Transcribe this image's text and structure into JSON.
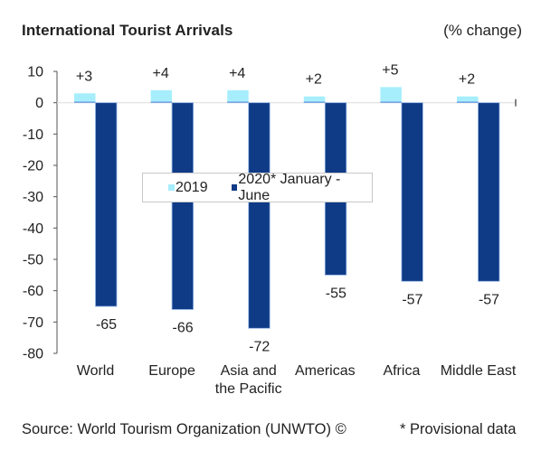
{
  "header": {
    "title": "International Tourist Arrivals",
    "unit": "(% change)"
  },
  "footer": {
    "source": "Source: World Tourism Organization (UNWTO) ©",
    "note": "* Provisional data"
  },
  "colors": {
    "series_2019": "#a6eefc",
    "series_2020": "#0f3a85",
    "series_2020_edge": "#8fb4e6",
    "zero_line": "#e6e6e6",
    "axis": "#555555"
  },
  "chart_data": {
    "type": "bar",
    "title": "International Tourist Arrivals",
    "subtitle": "(% change)",
    "xlabel": "",
    "ylabel": "",
    "ylim": [
      -80,
      10
    ],
    "yticks": [
      10,
      0,
      -10,
      -20,
      -30,
      -40,
      -50,
      -60,
      -70,
      -80
    ],
    "grid": false,
    "legend_position": "center",
    "categories": [
      [
        "World"
      ],
      [
        "Europe"
      ],
      [
        "Asia and",
        "the Pacific"
      ],
      [
        "Americas"
      ],
      [
        "Africa"
      ],
      [
        "Middle East"
      ]
    ],
    "series": [
      {
        "name": "2019",
        "values": [
          3,
          4,
          4,
          2,
          5,
          2
        ],
        "labels": [
          "+3",
          "+4",
          "+4",
          "+2",
          "+5",
          "+2"
        ]
      },
      {
        "name": "2020* January - June",
        "values": [
          -65,
          -66,
          -72,
          -55,
          -57,
          -57
        ],
        "labels": [
          "-65",
          "-66",
          "-72",
          "-55",
          "-57",
          "-57"
        ]
      }
    ]
  }
}
